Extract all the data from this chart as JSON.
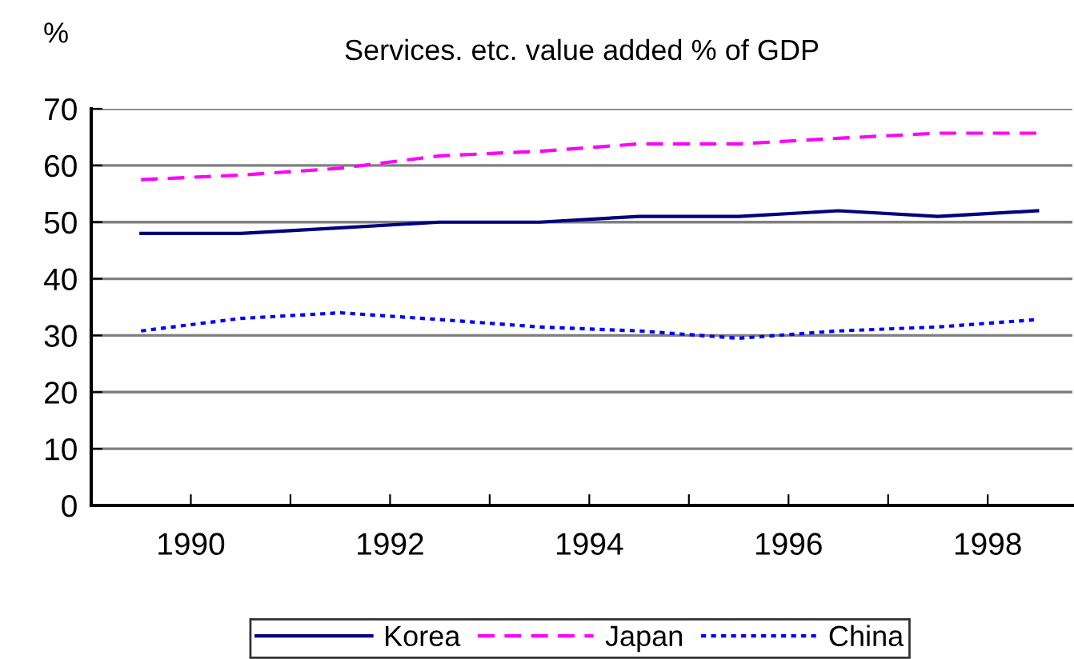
{
  "chart_data": {
    "type": "line",
    "title": "Services. etc. value added % of GDP",
    "ylabel": "%",
    "x": [
      1989.5,
      1990.5,
      1991.5,
      1992.5,
      1993.5,
      1994.5,
      1995.5,
      1996.5,
      1997.5,
      1998.5
    ],
    "series": [
      {
        "name": "Korea",
        "color": "#000080",
        "line_style": "solid",
        "values": [
          48,
          48,
          49,
          50,
          50,
          51,
          51,
          52,
          51,
          52
        ]
      },
      {
        "name": "Japan",
        "color": "#ff00ff",
        "line_style": "dashed",
        "values": [
          57.5,
          58.3,
          59.5,
          61.7,
          62.5,
          63.8,
          63.8,
          64.8,
          65.7,
          65.7
        ]
      },
      {
        "name": "China",
        "color": "#0000ff",
        "line_style": "dotted",
        "values": [
          30.8,
          33,
          34,
          32.8,
          31.5,
          30.8,
          29.5,
          30.8,
          31.5,
          32.8
        ]
      }
    ],
    "xlim": [
      1989,
      1998.85
    ],
    "xticks": [
      1990,
      {
        "value": 1991,
        "label": null
      },
      1992,
      {
        "value": 1993,
        "label": null
      },
      1994,
      {
        "value": 1995,
        "label": null
      },
      1996,
      {
        "value": 1997,
        "label": null
      },
      1998
    ],
    "ylim": [
      0,
      70
    ],
    "yticks": [
      0,
      10,
      20,
      30,
      40,
      50,
      60,
      70
    ],
    "grid": "y",
    "legend": "bottom",
    "marker": "none"
  }
}
